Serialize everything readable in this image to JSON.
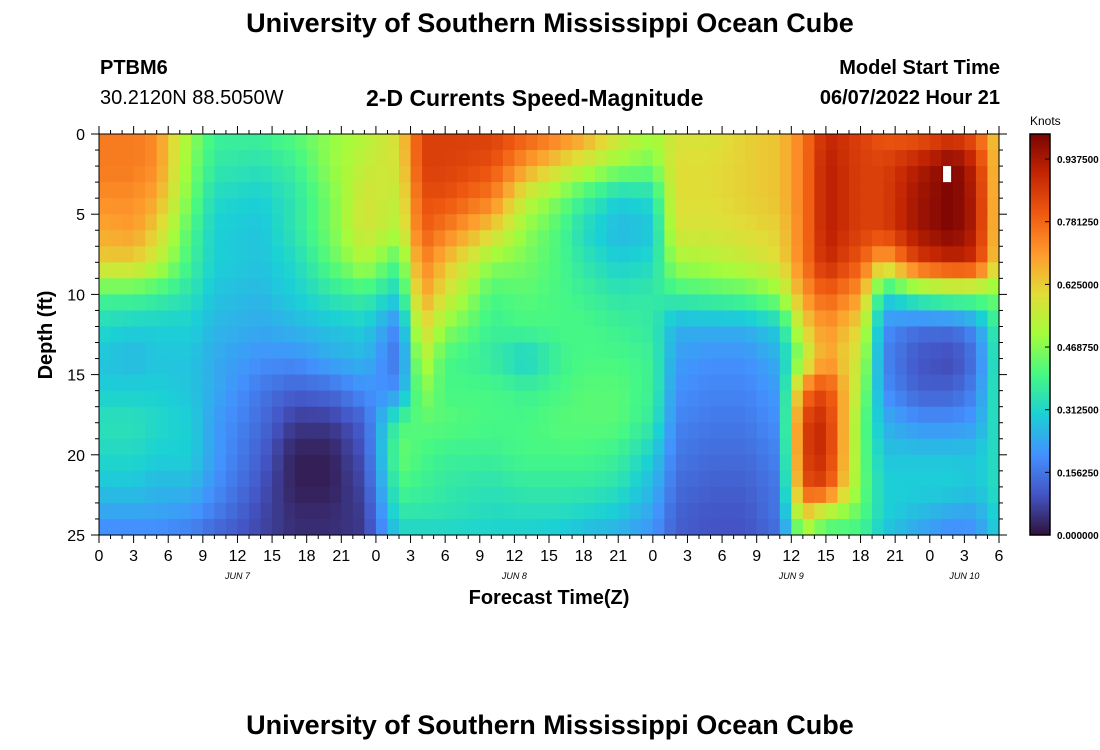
{
  "page": {
    "title": "University of Southern Mississippi Ocean Cube",
    "footer_title": "University of Southern Mississippi Ocean Cube",
    "station_id": "PTBM6",
    "station_coords": "30.2120N  88.5050W",
    "model_start_label": "Model Start Time",
    "model_start_value": "06/07/2022 Hour 21"
  },
  "chart_data": {
    "type": "heatmap",
    "title": "2-D Currents Speed-Magnitude",
    "xlabel": "Forecast Time(Z)",
    "ylabel": "Depth (ft)",
    "x_ticks": [
      "0",
      "3",
      "6",
      "9",
      "12",
      "15",
      "18",
      "21",
      "0",
      "3",
      "6",
      "9",
      "12",
      "15",
      "18",
      "21",
      "0",
      "3",
      "6",
      "9",
      "12",
      "15",
      "18",
      "21",
      "0",
      "3",
      "6"
    ],
    "x_range_hours": [
      0,
      78
    ],
    "date_labels": [
      {
        "label": "JUN 7",
        "hour": 12
      },
      {
        "label": "JUN 8",
        "hour": 36
      },
      {
        "label": "JUN 9",
        "hour": 60
      },
      {
        "label": "JUN 10",
        "hour": 75
      }
    ],
    "y_ticks": [
      "0",
      "5",
      "10",
      "15",
      "20",
      "25"
    ],
    "y_range_ft": [
      0,
      25
    ],
    "colorbar": {
      "unit": "Knots",
      "range": [
        0,
        1.0
      ],
      "tick_values": [
        0.0,
        0.15625,
        0.3125,
        0.46875,
        0.625,
        0.78125,
        0.9375
      ],
      "tick_labels": [
        "0.000000",
        "0.156250",
        "0.312500",
        "0.468750",
        "0.625000",
        "0.781250",
        "0.937500"
      ],
      "colors": [
        "#30123b",
        "#4454c4",
        "#4391fe",
        "#1bd0d5",
        "#46f884",
        "#a4fc3c",
        "#e1dd37",
        "#fe9b2d",
        "#ef5a11",
        "#c42503",
        "#7a0403"
      ]
    },
    "grid": {
      "hours": [
        0,
        3,
        5,
        8,
        10,
        14,
        17,
        20,
        23,
        26,
        28,
        30,
        34,
        37,
        40,
        42,
        45,
        48,
        50,
        53,
        56,
        59,
        61,
        63,
        66,
        68,
        71,
        74,
        76,
        78
      ],
      "depths": [
        0,
        2,
        4,
        6,
        8,
        10,
        12,
        14,
        16,
        18,
        20,
        22,
        24,
        25
      ],
      "values": [
        [
          0.75,
          0.75,
          0.72,
          0.48,
          0.38,
          0.38,
          0.42,
          0.48,
          0.52,
          0.6,
          0.85,
          0.85,
          0.85,
          0.8,
          0.75,
          0.7,
          0.58,
          0.5,
          0.58,
          0.58,
          0.62,
          0.64,
          0.75,
          0.9,
          0.85,
          0.8,
          0.8,
          0.85,
          0.8,
          0.6
        ],
        [
          0.75,
          0.75,
          0.72,
          0.46,
          0.36,
          0.34,
          0.38,
          0.48,
          0.55,
          0.58,
          0.85,
          0.85,
          0.82,
          0.7,
          0.6,
          0.55,
          0.48,
          0.45,
          0.6,
          0.6,
          0.62,
          0.64,
          0.75,
          0.92,
          0.85,
          0.85,
          0.92,
          1.0,
          0.9,
          0.6
        ],
        [
          0.72,
          0.72,
          0.68,
          0.44,
          0.32,
          0.3,
          0.35,
          0.45,
          0.58,
          0.55,
          0.82,
          0.82,
          0.75,
          0.55,
          0.45,
          0.38,
          0.3,
          0.32,
          0.6,
          0.6,
          0.62,
          0.64,
          0.75,
          0.92,
          0.85,
          0.85,
          0.95,
          1.0,
          0.92,
          0.6
        ],
        [
          0.68,
          0.7,
          0.62,
          0.4,
          0.3,
          0.28,
          0.35,
          0.45,
          0.58,
          0.52,
          0.8,
          0.75,
          0.62,
          0.48,
          0.4,
          0.32,
          0.26,
          0.28,
          0.58,
          0.58,
          0.6,
          0.62,
          0.75,
          0.92,
          0.85,
          0.85,
          0.95,
          1.0,
          0.92,
          0.6
        ],
        [
          0.62,
          0.62,
          0.55,
          0.38,
          0.3,
          0.28,
          0.32,
          0.42,
          0.52,
          0.4,
          0.75,
          0.65,
          0.48,
          0.45,
          0.4,
          0.35,
          0.3,
          0.32,
          0.5,
          0.52,
          0.55,
          0.6,
          0.75,
          0.9,
          0.8,
          0.65,
          0.85,
          0.9,
          0.88,
          0.58
        ],
        [
          0.4,
          0.4,
          0.38,
          0.34,
          0.28,
          0.26,
          0.3,
          0.35,
          0.38,
          0.3,
          0.7,
          0.58,
          0.4,
          0.42,
          0.4,
          0.38,
          0.35,
          0.36,
          0.38,
          0.4,
          0.42,
          0.48,
          0.7,
          0.8,
          0.7,
          0.3,
          0.4,
          0.45,
          0.45,
          0.45
        ],
        [
          0.32,
          0.3,
          0.3,
          0.3,
          0.26,
          0.24,
          0.26,
          0.28,
          0.3,
          0.18,
          0.62,
          0.48,
          0.38,
          0.4,
          0.4,
          0.4,
          0.38,
          0.36,
          0.25,
          0.25,
          0.25,
          0.3,
          0.6,
          0.72,
          0.6,
          0.2,
          0.15,
          0.15,
          0.2,
          0.4
        ],
        [
          0.28,
          0.26,
          0.28,
          0.28,
          0.24,
          0.2,
          0.2,
          0.24,
          0.26,
          0.14,
          0.55,
          0.4,
          0.36,
          0.3,
          0.38,
          0.4,
          0.4,
          0.38,
          0.22,
          0.2,
          0.2,
          0.25,
          0.5,
          0.7,
          0.55,
          0.18,
          0.1,
          0.08,
          0.15,
          0.38
        ],
        [
          0.3,
          0.3,
          0.3,
          0.28,
          0.24,
          0.16,
          0.12,
          0.14,
          0.2,
          0.2,
          0.48,
          0.4,
          0.4,
          0.38,
          0.4,
          0.42,
          0.42,
          0.38,
          0.2,
          0.18,
          0.18,
          0.22,
          0.75,
          0.85,
          0.5,
          0.2,
          0.12,
          0.12,
          0.18,
          0.38
        ],
        [
          0.34,
          0.34,
          0.32,
          0.3,
          0.22,
          0.14,
          0.06,
          0.06,
          0.12,
          0.4,
          0.42,
          0.42,
          0.4,
          0.4,
          0.42,
          0.42,
          0.42,
          0.36,
          0.18,
          0.16,
          0.16,
          0.2,
          0.85,
          0.9,
          0.45,
          0.25,
          0.2,
          0.2,
          0.22,
          0.36
        ],
        [
          0.32,
          0.32,
          0.3,
          0.3,
          0.22,
          0.12,
          0.02,
          0.02,
          0.1,
          0.44,
          0.4,
          0.38,
          0.38,
          0.4,
          0.4,
          0.4,
          0.38,
          0.3,
          0.16,
          0.14,
          0.14,
          0.18,
          0.85,
          0.9,
          0.45,
          0.28,
          0.28,
          0.28,
          0.28,
          0.34
        ],
        [
          0.28,
          0.28,
          0.26,
          0.26,
          0.2,
          0.1,
          0.02,
          0.02,
          0.08,
          0.4,
          0.38,
          0.36,
          0.34,
          0.36,
          0.36,
          0.36,
          0.34,
          0.26,
          0.14,
          0.12,
          0.12,
          0.16,
          0.82,
          0.85,
          0.45,
          0.3,
          0.3,
          0.3,
          0.28,
          0.34
        ],
        [
          0.22,
          0.22,
          0.22,
          0.2,
          0.16,
          0.08,
          0.04,
          0.04,
          0.06,
          0.34,
          0.34,
          0.34,
          0.32,
          0.32,
          0.32,
          0.3,
          0.28,
          0.22,
          0.12,
          0.1,
          0.1,
          0.16,
          0.6,
          0.45,
          0.42,
          0.3,
          0.26,
          0.22,
          0.22,
          0.32
        ],
        [
          0.18,
          0.18,
          0.18,
          0.16,
          0.12,
          0.08,
          0.04,
          0.04,
          0.06,
          0.3,
          0.3,
          0.3,
          0.3,
          0.3,
          0.28,
          0.26,
          0.24,
          0.2,
          0.12,
          0.1,
          0.1,
          0.14,
          0.48,
          0.4,
          0.38,
          0.28,
          0.22,
          0.18,
          0.2,
          0.3
        ]
      ]
    },
    "white_marker": {
      "hour": 73.5,
      "depth_ft": 2.5,
      "width_hours": 0.7,
      "height_ft": 1.0
    }
  }
}
